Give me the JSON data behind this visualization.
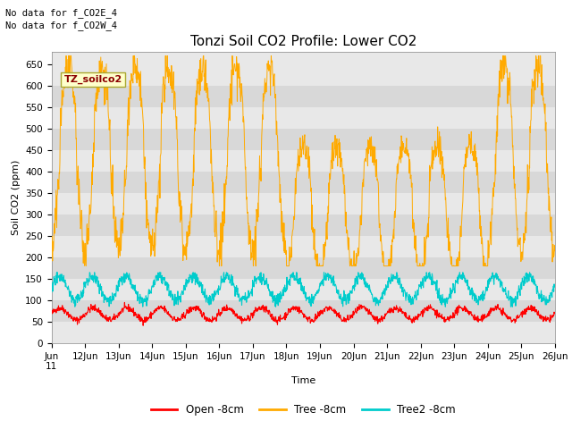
{
  "title": "Tonzi Soil CO2 Profile: Lower CO2",
  "ylabel": "Soil CO2 (ppm)",
  "xlabel": "Time",
  "annotations": [
    "No data for f_CO2E_4",
    "No data for f_CO2W_4"
  ],
  "legend_label": "TZ_soilco2",
  "series_labels": [
    "Open -8cm",
    "Tree -8cm",
    "Tree2 -8cm"
  ],
  "series_colors": [
    "#ff0000",
    "#ffaa00",
    "#00cccc"
  ],
  "ylim": [
    0,
    680
  ],
  "yticks": [
    0,
    50,
    100,
    150,
    200,
    250,
    300,
    350,
    400,
    450,
    500,
    550,
    600,
    650
  ],
  "bg_color": "#ffffff",
  "plot_bg_light": "#e8e8e8",
  "plot_bg_dark": "#d8d8d8",
  "title_fontsize": 11,
  "axis_fontsize": 8,
  "tick_fontsize": 7.5,
  "n_days": 15,
  "n_pts_per_day": 96,
  "open_base": 68,
  "open_amp": 14,
  "tree_base": 430,
  "tree_amp": 210,
  "tree2_base": 128,
  "tree2_amp": 28
}
